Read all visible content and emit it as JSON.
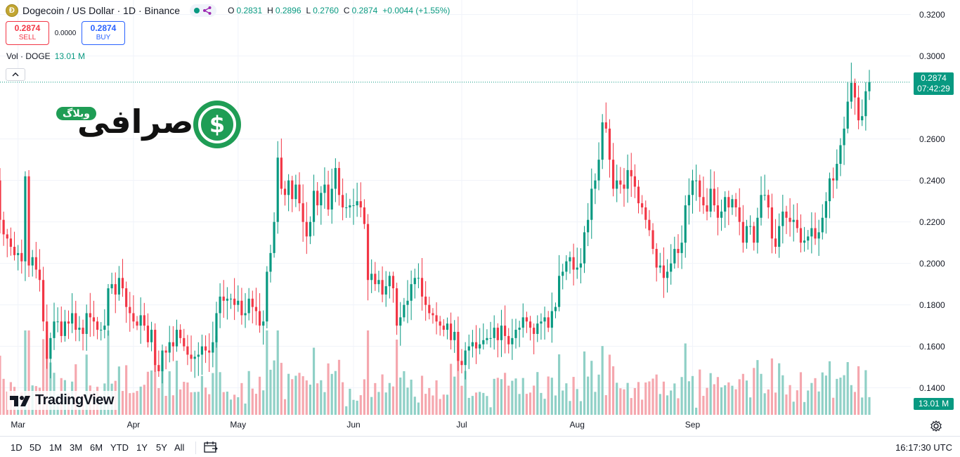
{
  "header": {
    "symbol_title": "Dogecoin / US Dollar · 1D · Binance",
    "coin_icon": "dogecoin-icon",
    "ohlc": [
      {
        "label": "O",
        "value": "0.2831"
      },
      {
        "label": "H",
        "value": "0.2896"
      },
      {
        "label": "L",
        "value": "0.2760"
      },
      {
        "label": "C",
        "value": "0.2874"
      },
      {
        "label": "",
        "value": "+0.0044 (+1.55%)"
      }
    ]
  },
  "trade": {
    "sell_price": "0.2874",
    "sell_label": "SELL",
    "spread": "0.0000",
    "buy_price": "0.2874",
    "buy_label": "BUY"
  },
  "volume_legend": {
    "label": "Vol · DOGE",
    "value": "13.01 M"
  },
  "watermark": {
    "pill": "وبلاگ",
    "word": "صرافی"
  },
  "tv_brand": "TradingView",
  "price_axis": {
    "ticks": [
      "0.3200",
      "0.3000",
      "0.2600",
      "0.2400",
      "0.2200",
      "0.2000",
      "0.1800",
      "0.1600",
      "0.1400"
    ],
    "last_price": "0.2874",
    "countdown": "07:42:29",
    "volume_tag": "13.01 M"
  },
  "time_axis": {
    "ticks": [
      "Mar",
      "Apr",
      "May",
      "Jun",
      "Jul",
      "Aug",
      "Sep"
    ]
  },
  "toolbar": {
    "ranges": [
      "1D",
      "5D",
      "1M",
      "3M",
      "6M",
      "YTD",
      "1Y",
      "5Y",
      "All"
    ],
    "clock": "16:17:30 UTC"
  },
  "colors": {
    "up": "#089981",
    "down": "#f23645",
    "up_vol": "#8fd0c6",
    "down_vol": "#f5a7ae",
    "grid": "#f0f3fa"
  },
  "chart_data": {
    "type": "candlestick",
    "title": "Dogecoin / US Dollar · 1D · Binance",
    "xlabel": "",
    "ylabel": "",
    "ylim": [
      0.127,
      0.327
    ],
    "x_ticks": [
      "Mar",
      "Apr",
      "May",
      "Jun",
      "Jul",
      "Aug",
      "Sep"
    ],
    "y_ticks": [
      0.32,
      0.3,
      0.26,
      0.24,
      0.22,
      0.2,
      0.18,
      0.16,
      0.14
    ],
    "last_price": 0.2874,
    "closes": [
      0.221,
      0.214,
      0.212,
      0.208,
      0.204,
      0.205,
      0.201,
      0.242,
      0.199,
      0.203,
      0.197,
      0.192,
      0.172,
      0.154,
      0.164,
      0.172,
      0.172,
      0.165,
      0.172,
      0.171,
      0.176,
      0.168,
      0.169,
      0.166,
      0.176,
      0.174,
      0.172,
      0.168,
      0.168,
      0.17,
      0.188,
      0.19,
      0.185,
      0.193,
      0.188,
      0.179,
      0.176,
      0.172,
      0.17,
      0.175,
      0.17,
      0.162,
      0.168,
      0.151,
      0.148,
      0.158,
      0.157,
      0.162,
      0.16,
      0.168,
      0.164,
      0.16,
      0.156,
      0.154,
      0.155,
      0.156,
      0.16,
      0.158,
      0.157,
      0.162,
      0.176,
      0.184,
      0.182,
      0.183,
      0.183,
      0.18,
      0.182,
      0.175,
      0.176,
      0.183,
      0.179,
      0.177,
      0.17,
      0.172,
      0.196,
      0.205,
      0.22,
      0.251,
      0.236,
      0.233,
      0.24,
      0.231,
      0.238,
      0.229,
      0.22,
      0.213,
      0.22,
      0.235,
      0.228,
      0.234,
      0.238,
      0.226,
      0.236,
      0.246,
      0.233,
      0.227,
      0.227,
      0.228,
      0.228,
      0.23,
      0.227,
      0.219,
      0.192,
      0.195,
      0.19,
      0.192,
      0.185,
      0.189,
      0.194,
      0.188,
      0.17,
      0.174,
      0.18,
      0.182,
      0.19,
      0.193,
      0.193,
      0.184,
      0.18,
      0.176,
      0.175,
      0.172,
      0.17,
      0.168,
      0.171,
      0.163,
      0.167,
      0.153,
      0.151,
      0.158,
      0.16,
      0.162,
      0.159,
      0.161,
      0.163,
      0.164,
      0.164,
      0.169,
      0.163,
      0.17,
      0.165,
      0.161,
      0.164,
      0.168,
      0.169,
      0.174,
      0.172,
      0.169,
      0.166,
      0.171,
      0.172,
      0.174,
      0.169,
      0.177,
      0.179,
      0.194,
      0.196,
      0.201,
      0.203,
      0.197,
      0.198,
      0.2,
      0.215,
      0.221,
      0.236,
      0.24,
      0.25,
      0.268,
      0.265,
      0.25,
      0.236,
      0.24,
      0.238,
      0.236,
      0.245,
      0.242,
      0.237,
      0.229,
      0.227,
      0.221,
      0.216,
      0.207,
      0.198,
      0.199,
      0.193,
      0.196,
      0.2,
      0.207,
      0.205,
      0.21,
      0.228,
      0.233,
      0.24,
      0.24,
      0.232,
      0.228,
      0.225,
      0.236,
      0.228,
      0.222,
      0.225,
      0.232,
      0.227,
      0.231,
      0.227,
      0.22,
      0.21,
      0.218,
      0.218,
      0.21,
      0.222,
      0.233,
      0.233,
      0.227,
      0.212,
      0.208,
      0.218,
      0.225,
      0.222,
      0.22,
      0.221,
      0.217,
      0.21,
      0.211,
      0.213,
      0.217,
      0.212,
      0.215,
      0.222,
      0.23,
      0.241,
      0.24,
      0.248,
      0.257,
      0.265,
      0.278,
      0.287,
      0.28,
      0.269,
      0.271,
      0.283,
      0.2874
    ],
    "opens_start": 0.24,
    "volumes_millions_scale_note": "relative volume bars, last = 13.01 M",
    "last_volume": "13.01 M"
  }
}
